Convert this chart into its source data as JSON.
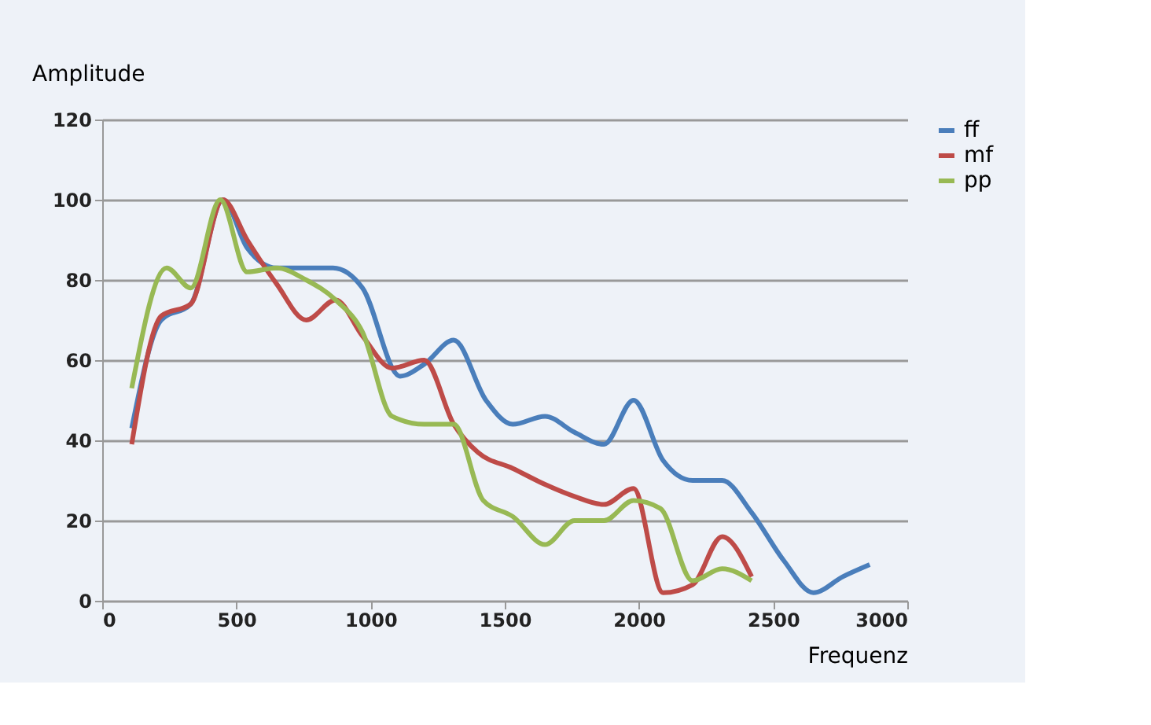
{
  "chart_data": {
    "type": "line",
    "xlabel": "Frequenz",
    "ylabel": "Amplitude",
    "xlim": [
      0,
      3000
    ],
    "xticks": [
      0,
      500,
      1000,
      1500,
      2000,
      2500,
      3000
    ],
    "ylim": [
      0,
      120
    ],
    "yticks": [
      0,
      20,
      40,
      60,
      80,
      100,
      120
    ],
    "grid": "y",
    "legend": "right",
    "marker": "none",
    "line_style": "solid",
    "series": [
      {
        "name": "ff",
        "color": "#4a7ebb",
        "x": [
          110,
          220,
          330,
          450,
          540,
          650,
          860,
          970,
          1110,
          1200,
          1310,
          1430,
          1530,
          1650,
          1760,
          1870,
          1980,
          2090,
          2200,
          2310,
          2420,
          2540,
          2650,
          2760,
          2860
        ],
        "values": [
          43,
          70,
          74,
          100,
          88,
          83,
          83,
          78,
          56,
          59,
          65,
          50,
          44,
          46,
          42,
          39,
          50,
          35,
          30,
          30,
          22,
          10,
          2,
          6,
          9
        ]
      },
      {
        "name": "mf",
        "color": "#be4b48",
        "x": [
          110,
          220,
          330,
          450,
          540,
          650,
          760,
          870,
          970,
          1080,
          1200,
          1310,
          1400,
          1530,
          1650,
          1760,
          1870,
          1980,
          2090,
          2200,
          2310,
          2420
        ],
        "values": [
          39,
          71,
          74,
          100,
          90,
          79,
          70,
          75,
          66,
          58,
          60,
          44,
          37,
          33,
          29,
          26,
          24,
          28,
          2,
          4,
          16,
          6
        ]
      },
      {
        "name": "pp",
        "color": "#98b954",
        "x": [
          110,
          240,
          330,
          440,
          540,
          650,
          760,
          870,
          970,
          1080,
          1200,
          1310,
          1420,
          1530,
          1650,
          1760,
          1870,
          1980,
          2080,
          2200,
          2310,
          2420
        ],
        "values": [
          53,
          83,
          78,
          100,
          82,
          83,
          80,
          75,
          67,
          46,
          44,
          44,
          25,
          21,
          14,
          20,
          20,
          25,
          23,
          5,
          8,
          5
        ]
      }
    ]
  }
}
